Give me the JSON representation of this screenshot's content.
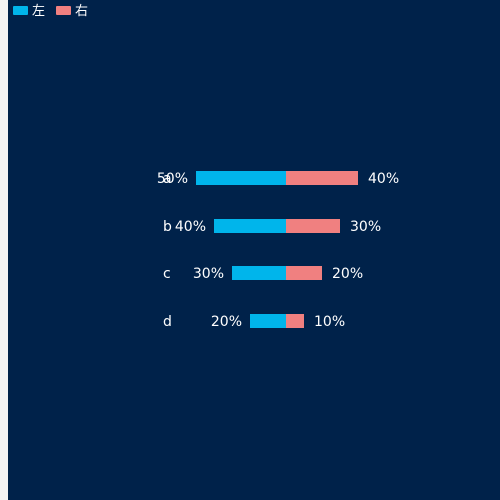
{
  "chart_data": {
    "type": "bar",
    "orientation": "horizontal-diverging",
    "categories": [
      "a",
      "b",
      "c",
      "d"
    ],
    "series": [
      {
        "name": "左",
        "values": [
          50,
          40,
          30,
          20
        ],
        "color": "#00b5eb",
        "side": "left"
      },
      {
        "name": "右",
        "values": [
          40,
          30,
          20,
          10
        ],
        "color": "#f08080",
        "side": "right"
      }
    ],
    "value_format": "{v}%",
    "legend": "top-left",
    "grid": false,
    "background": "#00224a"
  }
}
